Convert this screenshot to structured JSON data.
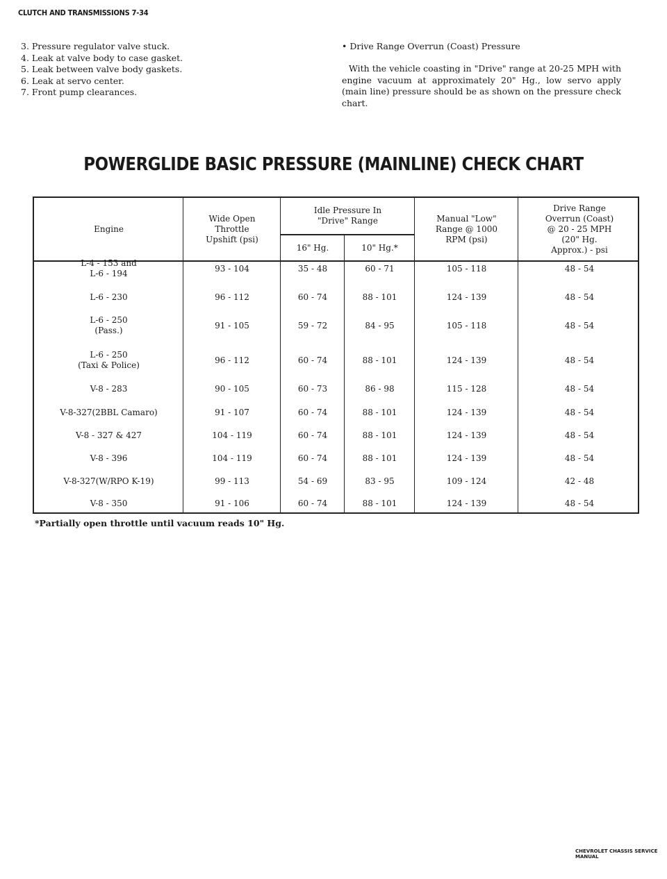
{
  "header": "CLUTCH AND TRANSMISSIONS 7-34",
  "causes": [
    "3. Pressure regulator valve stuck.",
    "4. Leak at valve body to case gasket.",
    "5. Leak between valve body gaskets.",
    "6. Leak at servo center.",
    "7. Front pump clearances."
  ],
  "section": {
    "heading": "• Drive Range Overrun (Coast) Pressure",
    "body": "With the vehicle coasting in \"Drive\" range at 20-25 MPH with engine vacuum at approximately 20\" Hg., low servo apply (main line) pressure should be as shown on the pressure check chart."
  },
  "title": "POWERGLIDE BASIC PRESSURE (MAINLINE) CHECK CHART",
  "table": {
    "headers": {
      "engine": "Engine",
      "wot": "Wide Open\nThrottle\nUpshift (psi)",
      "idle": "Idle Pressure In\n\"Drive\" Range",
      "idle16": "16\" Hg.",
      "idle10": "10\" Hg.*",
      "manual": "Manual \"Low\"\nRange @ 1000\nRPM (psi)",
      "overrun": "Drive Range\nOverrun (Coast)\n@ 20 - 25 MPH\n(20\" Hg.\nApprox.) - psi"
    },
    "rows": [
      [
        "L-4 - 153 and\nL-6 - 194",
        "93 - 104",
        "35 - 48",
        "60 - 71",
        "105 - 118",
        "48 - 54"
      ],
      [
        "L-6 - 230",
        "96 - 112",
        "60 - 74",
        "88 - 101",
        "124 - 139",
        "48 - 54"
      ],
      [
        "L-6 - 250\n(Pass.)",
        "91 - 105",
        "59 - 72",
        "84 - 95",
        "105 - 118",
        "48 - 54"
      ],
      [
        "L-6 - 250\n(Taxi & Police)",
        "96 - 112",
        "60 - 74",
        "88 - 101",
        "124 - 139",
        "48 - 54"
      ],
      [
        "V-8 - 283",
        "90 - 105",
        "60 - 73",
        "86 - 98",
        "115 - 128",
        "48 - 54"
      ],
      [
        "V-8-327(2BBL Camaro)",
        "91 - 107",
        "60 - 74",
        "88 - 101",
        "124 - 139",
        "48 - 54"
      ],
      [
        "V-8 - 327 & 427",
        "104 - 119",
        "60 - 74",
        "88 - 101",
        "124 - 139",
        "48 - 54"
      ],
      [
        "V-8 - 396",
        "104 - 119",
        "60 - 74",
        "88 - 101",
        "124 - 139",
        "48 - 54"
      ],
      [
        "V-8-327(W/RPO K-19)",
        "99 - 113",
        "54 - 69",
        "83 - 95",
        "109 - 124",
        "42 - 48"
      ],
      [
        "V-8 - 350",
        "91 - 106",
        "60 - 74",
        "88 - 101",
        "124 - 139",
        "48 - 54"
      ]
    ]
  },
  "footnote": "*Partially open throttle until vacuum reads 10\" Hg.",
  "brand": "CHEVROLET CHASSIS SERVICE MANUAL"
}
